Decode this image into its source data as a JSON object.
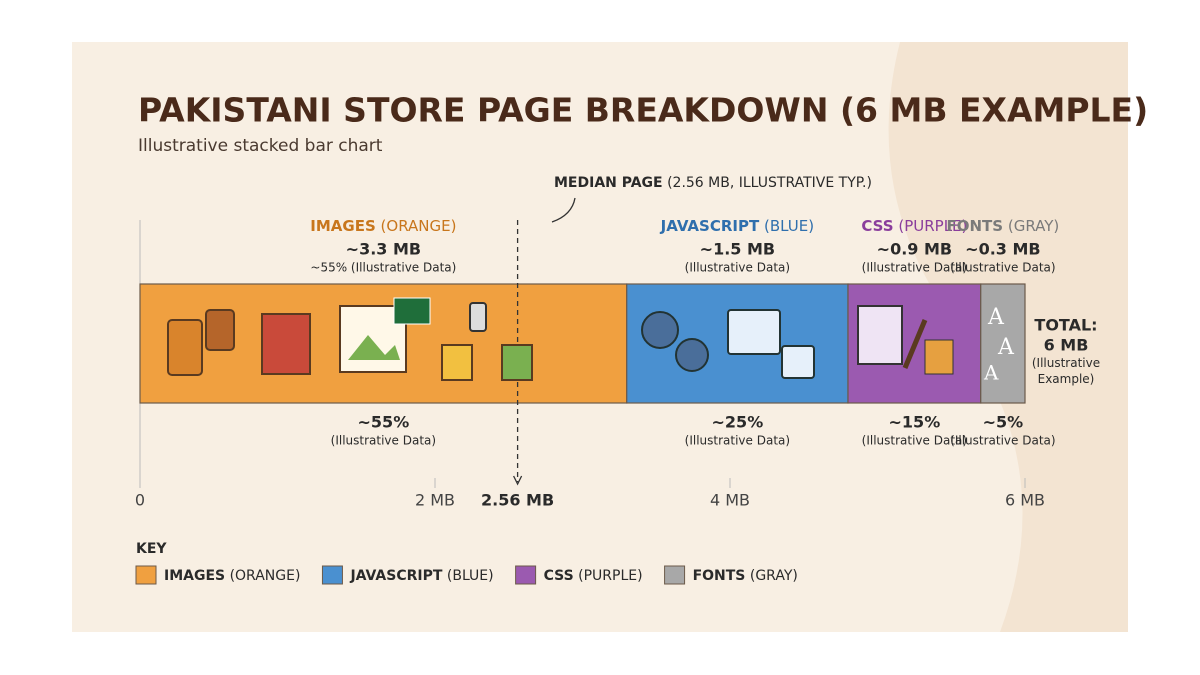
{
  "chart_data": {
    "type": "stacked-bar",
    "title": "PAKISTANI STORE PAGE BREAKDOWN (6 MB EXAMPLE)",
    "subtitle": "Illustrative stacked bar chart",
    "xlim": [
      0,
      6
    ],
    "xticks": [
      0,
      {
        "value": 2,
        "label": "2 MB"
      },
      {
        "value": 4,
        "label": "4 MB"
      },
      {
        "value": 6,
        "label": "6 MB"
      }
    ],
    "series": [
      {
        "name": "IMAGES",
        "color_name": "(ORANGE)",
        "color": "#f0a040",
        "label_color": "#c8761c",
        "value": 3.3,
        "value_label": "~3.3 MB",
        "note_top": "~55% (Illustrative Data)",
        "percent_label": "~55%",
        "note_bottom": "(Illustrative Data)"
      },
      {
        "name": "JAVASCRIPT",
        "color_name": "(BLUE)",
        "color": "#4a90d0",
        "label_color": "#2f6fad",
        "value": 1.5,
        "value_label": "~1.5 MB",
        "note_top": "(Illustrative Data)",
        "percent_label": "~25%",
        "note_bottom": "(Illustrative Data)"
      },
      {
        "name": "CSS",
        "color_name": "(PURPLE)",
        "color": "#9b5ab0",
        "label_color": "#8a3d9c",
        "value": 0.9,
        "value_label": "~0.9 MB",
        "note_top": "(Illustrative Data)",
        "percent_label": "~15%",
        "note_bottom": "(Illustrative Data)"
      },
      {
        "name": "FONTS",
        "color_name": "(GRAY)",
        "color": "#a8a8a8",
        "label_color": "#7a7a7a",
        "value": 0.3,
        "value_label": "~0.3 MB",
        "note_top": "(Illustrative Data)",
        "percent_label": "~5%",
        "note_bottom": "(Illustrative Data)"
      }
    ],
    "marker": {
      "value": 2.56,
      "label": "2.56 MB",
      "annotation_bold": "MEDIAN PAGE",
      "annotation": "(2.56 MB, ILLUSTRATIVE TYP.)"
    },
    "total": {
      "heading": "TOTAL:",
      "value_label": "6 MB",
      "note": "(Illustrative Example)"
    },
    "legend_title": "KEY"
  }
}
